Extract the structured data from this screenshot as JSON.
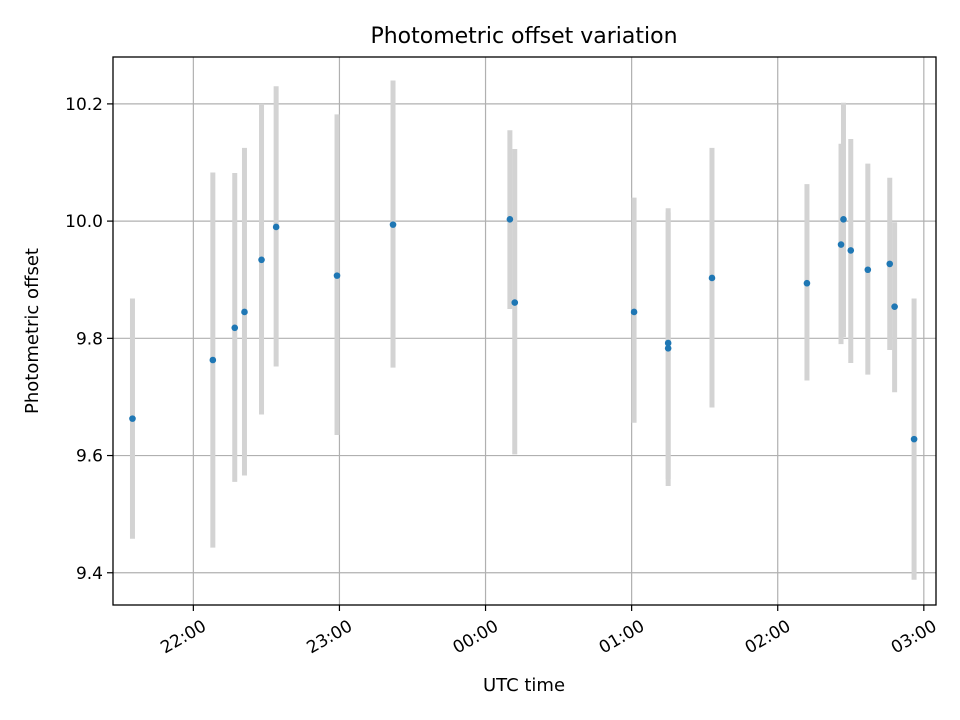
{
  "chart_data": {
    "type": "scatter",
    "title": "Photometric offset variation",
    "xlabel": "UTC time",
    "ylabel": "Photometric offset",
    "x_ticks": [
      "22:00",
      "23:00",
      "00:00",
      "01:00",
      "02:00",
      "03:00"
    ],
    "y_ticks": [
      "9.4",
      "9.6",
      "9.8",
      "10.0",
      "10.2"
    ],
    "xlim": [
      "21:27",
      "03:05"
    ],
    "ylim": [
      9.345,
      10.28
    ],
    "grid": true,
    "marker_color": "#1f77b4",
    "errorbar_color": "#d3d3d3",
    "points": [
      {
        "time": "21:35",
        "y": 9.663,
        "lo": 9.458,
        "hi": 9.868
      },
      {
        "time": "22:08",
        "y": 9.763,
        "lo": 9.443,
        "hi": 10.083
      },
      {
        "time": "22:17",
        "y": 9.818,
        "lo": 9.555,
        "hi": 10.082
      },
      {
        "time": "22:21",
        "y": 9.845,
        "lo": 9.566,
        "hi": 10.125
      },
      {
        "time": "22:28",
        "y": 9.934,
        "lo": 9.67,
        "hi": 10.2
      },
      {
        "time": "22:34",
        "y": 9.99,
        "lo": 9.752,
        "hi": 10.23
      },
      {
        "time": "22:59",
        "y": 9.907,
        "lo": 9.635,
        "hi": 10.182
      },
      {
        "time": "23:22",
        "y": 9.994,
        "lo": 9.75,
        "hi": 10.24
      },
      {
        "time": "00:10",
        "y": 10.003,
        "lo": 9.85,
        "hi": 10.155
      },
      {
        "time": "00:12",
        "y": 9.861,
        "lo": 9.602,
        "hi": 10.123
      },
      {
        "time": "01:01",
        "y": 9.845,
        "lo": 9.656,
        "hi": 10.04
      },
      {
        "time": "01:15",
        "y": 9.792,
        "lo": 9.56,
        "hi": 10.022
      },
      {
        "time": "01:15",
        "y": 9.783,
        "lo": 9.548,
        "hi": 10.015
      },
      {
        "time": "01:33",
        "y": 9.903,
        "lo": 9.682,
        "hi": 10.125
      },
      {
        "time": "02:12",
        "y": 9.894,
        "lo": 9.728,
        "hi": 10.063
      },
      {
        "time": "02:26",
        "y": 9.96,
        "lo": 9.79,
        "hi": 10.132
      },
      {
        "time": "02:27",
        "y": 10.003,
        "lo": 9.802,
        "hi": 10.202
      },
      {
        "time": "02:30",
        "y": 9.95,
        "lo": 9.758,
        "hi": 10.14
      },
      {
        "time": "02:37",
        "y": 9.917,
        "lo": 9.738,
        "hi": 10.098
      },
      {
        "time": "02:46",
        "y": 9.927,
        "lo": 9.78,
        "hi": 10.074
      },
      {
        "time": "02:48",
        "y": 9.854,
        "lo": 9.708,
        "hi": 9.998
      },
      {
        "time": "02:56",
        "y": 9.628,
        "lo": 9.388,
        "hi": 9.868
      }
    ]
  }
}
